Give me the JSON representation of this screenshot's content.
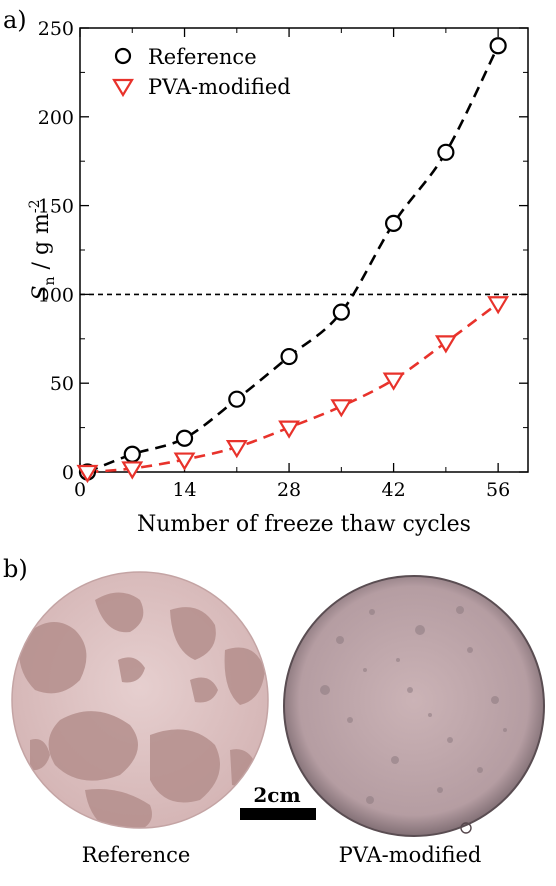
{
  "panels": {
    "a_label": "a)",
    "b_label": "b)"
  },
  "chart_data": {
    "type": "scatter",
    "xlabel": "Number of freeze thaw cycles",
    "ylabel_main": "S",
    "ylabel_sub": "n",
    "ylabel_rest": " / g m",
    "ylabel_sup": "-2",
    "xlim": [
      0,
      60
    ],
    "ylim": [
      0,
      250
    ],
    "xticks": [
      0,
      14,
      28,
      42,
      56
    ],
    "yticks": [
      0,
      50,
      100,
      150,
      200,
      250
    ],
    "reference_line": 100,
    "legend_position": "top-left",
    "series": [
      {
        "name": "Reference",
        "marker": "circle",
        "color": "#000000",
        "x": [
          1,
          7,
          14,
          21,
          28,
          35,
          42,
          49,
          56
        ],
        "y": [
          0,
          10,
          19,
          41,
          65,
          90,
          140,
          180,
          240
        ]
      },
      {
        "name": "PVA-modified",
        "marker": "triangle-down",
        "color": "#e8322b",
        "x": [
          1,
          7,
          14,
          21,
          28,
          35,
          42,
          49,
          56
        ],
        "y": [
          0,
          2,
          7,
          14,
          25,
          37,
          52,
          73,
          95
        ]
      }
    ]
  },
  "photos": {
    "left_caption": "Reference",
    "right_caption": "PVA-modified",
    "scale_label": "2cm"
  }
}
